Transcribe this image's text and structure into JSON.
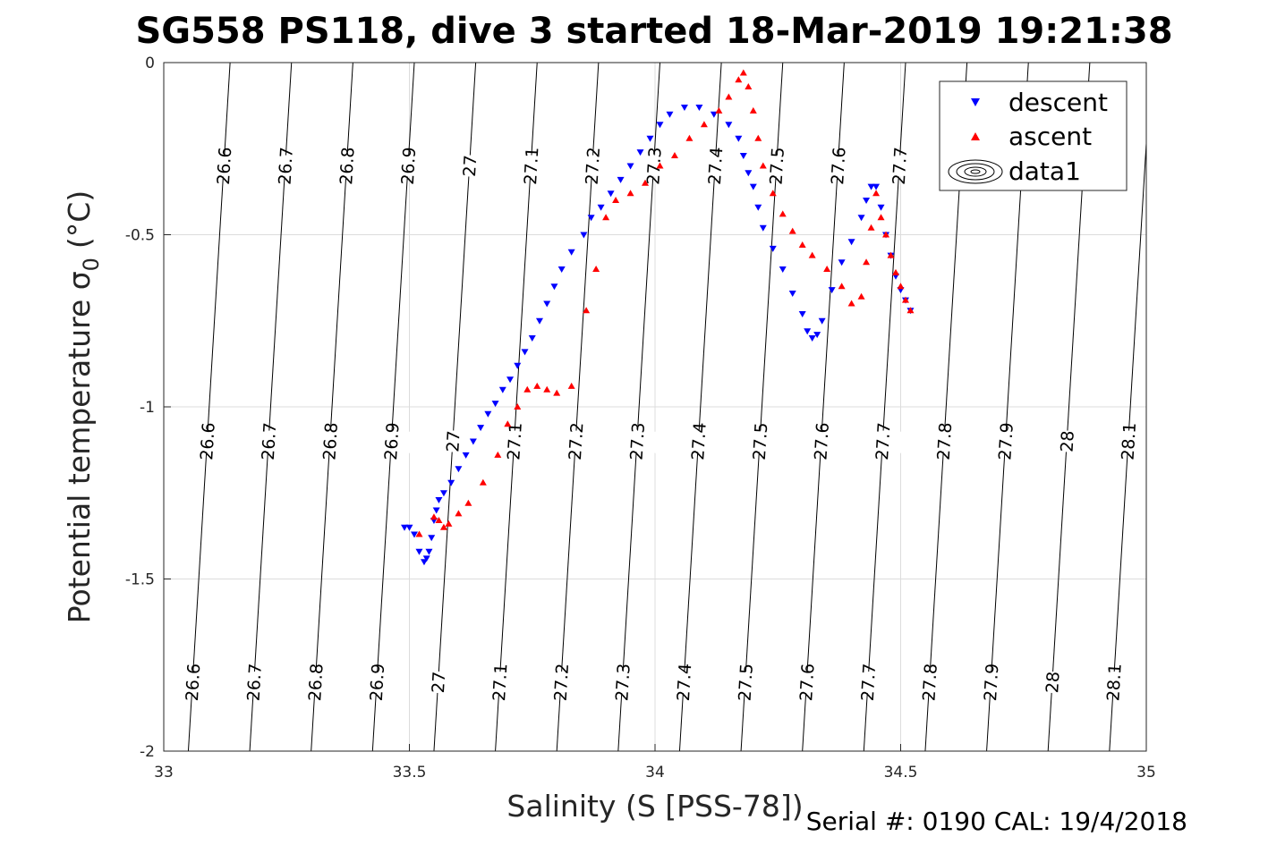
{
  "chart_data": {
    "type": "scatter",
    "title": "SG558 PS118, dive 3 started 18-Mar-2019 19:21:38",
    "xlabel": "Salinity (S [PSS-78])",
    "ylabel": "Potential temperature σ",
    "ylabel_sub": "0",
    "ylabel_unit": "(°C)",
    "xlim": [
      33,
      35
    ],
    "ylim": [
      -2,
      0
    ],
    "x_ticks": [
      33,
      33.5,
      34,
      34.5,
      35
    ],
    "x_tick_labels": [
      "33",
      "33.5",
      "34",
      "34.5",
      "35"
    ],
    "y_ticks": [
      0,
      -0.5,
      -1,
      -1.5,
      -2
    ],
    "y_tick_labels": [
      "0",
      "-0.5",
      "-1",
      "-1.5",
      "-2"
    ],
    "grid": true,
    "legend_position": "top-right",
    "legend": [
      "descent",
      "ascent",
      "data1"
    ],
    "colors": {
      "descent": "#0000ff",
      "ascent": "#ff0000",
      "contour": "#000000"
    },
    "footer": "Serial #: 0190  CAL: 19/4/2018",
    "contours": {
      "levels": [
        26.6,
        26.7,
        26.8,
        26.9,
        27,
        27.1,
        27.2,
        27.3,
        27.4,
        27.5,
        27.6,
        27.7,
        27.8,
        27.9,
        28,
        28.1
      ],
      "labels": [
        "26.6",
        "26.7",
        "26.8",
        "26.9",
        "27",
        "27.1",
        "27.2",
        "27.3",
        "27.4",
        "27.5",
        "27.6",
        "27.7",
        "27.8",
        "27.9",
        "28",
        "28.1"
      ],
      "s_at_theta_0": [
        33.135,
        33.26,
        33.385,
        33.51,
        33.635,
        33.76,
        33.885,
        34.01,
        34.135,
        34.26,
        34.385,
        34.51,
        34.635,
        34.76,
        34.885,
        35.01
      ],
      "s_at_theta_minus2": [
        33.05,
        33.175,
        33.3,
        33.425,
        33.55,
        33.675,
        33.8,
        33.925,
        34.05,
        34.175,
        34.3,
        34.425,
        34.55,
        34.675,
        34.8,
        34.925
      ]
    },
    "series": [
      {
        "name": "descent",
        "marker": "triangle-down",
        "x": [
          33.49,
          33.5,
          33.51,
          33.52,
          33.53,
          33.535,
          33.54,
          33.545,
          33.55,
          33.555,
          33.56,
          33.57,
          33.585,
          33.6,
          33.615,
          33.63,
          33.645,
          33.66,
          33.675,
          33.69,
          33.705,
          33.72,
          33.735,
          33.75,
          33.765,
          33.78,
          33.795,
          33.81,
          33.83,
          33.855,
          33.87,
          33.89,
          33.91,
          33.93,
          33.95,
          33.97,
          33.99,
          34.01,
          34.03,
          34.06,
          34.09,
          34.12,
          34.15,
          34.17,
          34.18,
          34.19,
          34.2,
          34.21,
          34.22,
          34.24,
          34.26,
          34.28,
          34.3,
          34.31,
          34.32,
          34.33,
          34.34,
          34.36,
          34.38,
          34.4,
          34.42,
          34.43,
          34.44,
          34.45,
          34.46,
          34.47,
          34.48,
          34.49,
          34.5,
          34.51,
          34.52
        ],
        "y": [
          -1.35,
          -1.35,
          -1.37,
          -1.42,
          -1.45,
          -1.44,
          -1.42,
          -1.38,
          -1.33,
          -1.3,
          -1.27,
          -1.25,
          -1.22,
          -1.18,
          -1.14,
          -1.1,
          -1.06,
          -1.02,
          -0.99,
          -0.95,
          -0.92,
          -0.88,
          -0.84,
          -0.8,
          -0.75,
          -0.7,
          -0.65,
          -0.6,
          -0.55,
          -0.5,
          -0.45,
          -0.42,
          -0.38,
          -0.34,
          -0.3,
          -0.26,
          -0.22,
          -0.18,
          -0.15,
          -0.13,
          -0.13,
          -0.15,
          -0.18,
          -0.22,
          -0.27,
          -0.32,
          -0.36,
          -0.42,
          -0.48,
          -0.54,
          -0.6,
          -0.67,
          -0.73,
          -0.78,
          -0.8,
          -0.79,
          -0.75,
          -0.66,
          -0.58,
          -0.52,
          -0.45,
          -0.4,
          -0.36,
          -0.36,
          -0.42,
          -0.5,
          -0.56,
          -0.62,
          -0.66,
          -0.69,
          -0.72
        ]
      },
      {
        "name": "ascent",
        "marker": "triangle-up",
        "x": [
          33.52,
          33.55,
          33.56,
          33.57,
          33.58,
          33.6,
          33.62,
          33.65,
          33.68,
          33.7,
          33.72,
          33.74,
          33.76,
          33.78,
          33.8,
          33.83,
          33.86,
          33.88,
          33.9,
          33.92,
          33.95,
          33.98,
          34.01,
          34.04,
          34.07,
          34.1,
          34.13,
          34.15,
          34.17,
          34.18,
          34.19,
          34.2,
          34.21,
          34.22,
          34.24,
          34.26,
          34.28,
          34.3,
          34.32,
          34.35,
          34.38,
          34.4,
          34.42,
          34.43,
          34.44,
          34.45,
          34.46,
          34.47,
          34.48,
          34.49,
          34.5,
          34.51,
          34.52
        ],
        "y": [
          -1.37,
          -1.32,
          -1.33,
          -1.35,
          -1.34,
          -1.31,
          -1.28,
          -1.22,
          -1.14,
          -1.05,
          -1.0,
          -0.95,
          -0.94,
          -0.95,
          -0.96,
          -0.94,
          -0.72,
          -0.6,
          -0.45,
          -0.4,
          -0.38,
          -0.35,
          -0.3,
          -0.27,
          -0.22,
          -0.18,
          -0.14,
          -0.1,
          -0.05,
          -0.03,
          -0.07,
          -0.14,
          -0.22,
          -0.3,
          -0.38,
          -0.44,
          -0.49,
          -0.53,
          -0.56,
          -0.6,
          -0.65,
          -0.7,
          -0.68,
          -0.58,
          -0.48,
          -0.38,
          -0.45,
          -0.5,
          -0.56,
          -0.61,
          -0.65,
          -0.69,
          -0.72
        ]
      }
    ]
  }
}
